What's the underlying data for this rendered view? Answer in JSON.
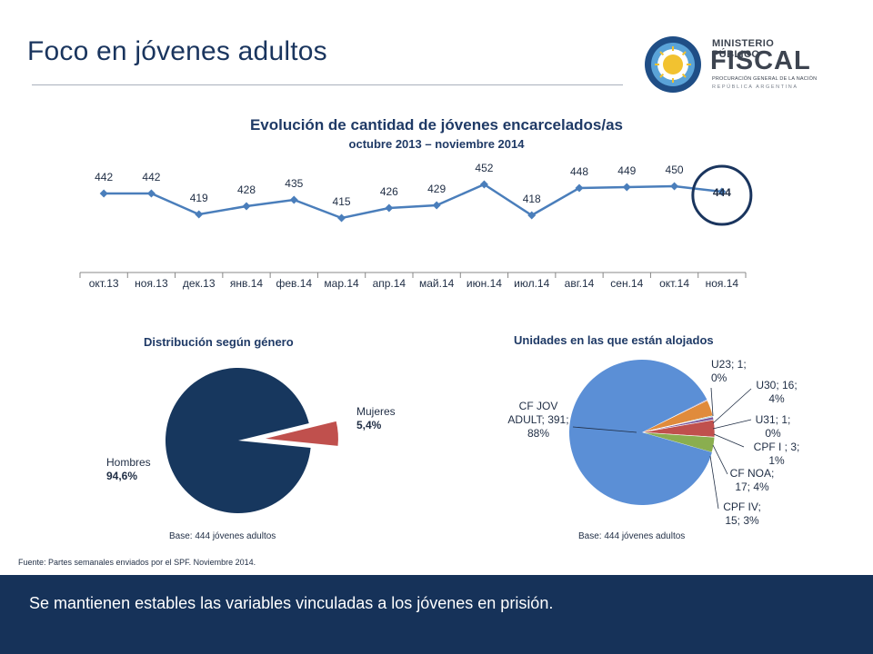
{
  "slide": {
    "title": "Foco en jóvenes adultos",
    "source": "Fuente: Partes semanales enviados por el SPF. Noviembre 2014.",
    "footer": "Se mantienen estables las variables vinculadas a los jóvenes en prisión."
  },
  "logo": {
    "line1": "MINISTERIO PÚBLICO",
    "line2": "FISCAL",
    "line3": "PROCURACIÓN GENERAL DE LA NACIÓN",
    "line4": "REPÚBLICA ARGENTINA",
    "icon": "sun-emblem-icon"
  },
  "colors": {
    "navy": "#1a355e",
    "line_series": "#4a7ebb",
    "pie_hombres": "#17375e",
    "pie_mujeres": "#c0504d",
    "units_main": "#5b8fd6",
    "units_orange": "#e08b3c",
    "units_red": "#c0504d",
    "units_green": "#8aae4f",
    "units_purple": "#7d5a9c",
    "units_teal": "#4bacc6"
  },
  "chart_data": [
    {
      "type": "line",
      "title": "Evolución de cantidad de jóvenes encarcelados/as",
      "subtitle": "octubre 2013 – noviembre 2014",
      "categories": [
        "окт.13",
        "ноя.13",
        "дек.13",
        "янв.14",
        "фев.14",
        "мар.14",
        "апр.14",
        "май.14",
        "июн.14",
        "июл.14",
        "авг.14",
        "сен.14",
        "окт.14",
        "ноя.14"
      ],
      "values": [
        442,
        442,
        419,
        428,
        435,
        415,
        426,
        429,
        452,
        418,
        448,
        449,
        450,
        444
      ],
      "highlight_last": true,
      "ylim": [
        400,
        460
      ]
    },
    {
      "type": "pie",
      "title": "Distribución según género",
      "base": "Base: 444 jóvenes adultos",
      "slices": [
        {
          "name": "Hombres",
          "value_label": "94,6%",
          "value": 94.6
        },
        {
          "name": "Mujeres",
          "value_label": "5,4%",
          "value": 5.4
        }
      ]
    },
    {
      "type": "pie",
      "title": "Unidades en las que están alojados",
      "base": "Base: 444 jóvenes adultos",
      "slices": [
        {
          "label": "CF JOV ADULT; 391; 88%",
          "value": 391
        },
        {
          "label": "U23; 1; 0%",
          "value": 1
        },
        {
          "label": "U30; 16; 4%",
          "value": 16
        },
        {
          "label": "U31; 1; 0%",
          "value": 1
        },
        {
          "label": "CPF I ; 3; 1%",
          "value": 3
        },
        {
          "label": "CF NOA; 17; 4%",
          "value": 17
        },
        {
          "label": "CPF IV; 15; 3%",
          "value": 15
        }
      ]
    }
  ]
}
